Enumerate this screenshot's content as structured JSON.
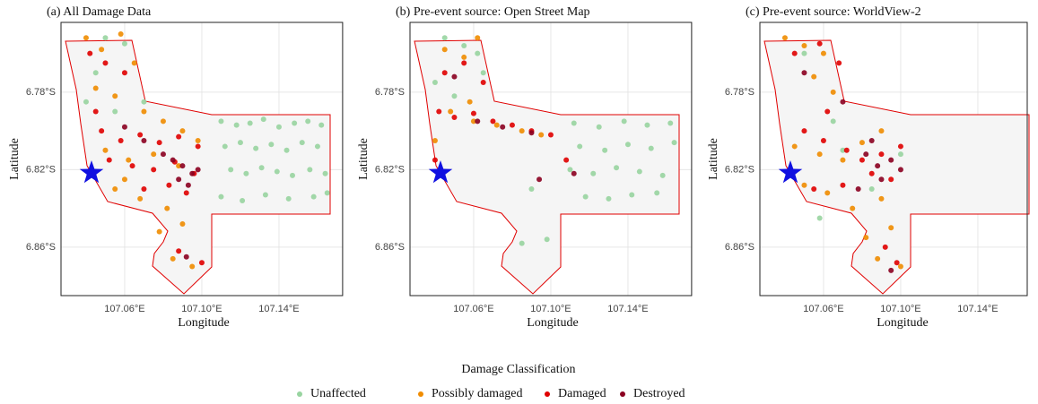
{
  "chart_data": [
    {
      "type": "scatter",
      "title": "(a) All Damage Data",
      "xlabel": "Longitude",
      "ylabel": "Latitude",
      "xlim": [
        107.027,
        107.173
      ],
      "ylim": [
        -6.885,
        -6.744
      ],
      "xticks": [
        {
          "value": 107.06,
          "label": "107.06°E"
        },
        {
          "value": 107.1,
          "label": "107.10°E"
        },
        {
          "value": 107.14,
          "label": "107.14°E"
        }
      ],
      "yticks": [
        {
          "value": -6.78,
          "label": "6.78°S"
        },
        {
          "value": -6.82,
          "label": "6.82°S"
        },
        {
          "value": -6.86,
          "label": "6.86°S"
        }
      ],
      "grid": true,
      "series": [
        {
          "name": "Unaffected",
          "color": "#98d4a0",
          "x": [
            107.11,
            107.118,
            107.125,
            107.132,
            107.14,
            107.148,
            107.155,
            107.162,
            107.112,
            107.12,
            107.128,
            107.136,
            107.144,
            107.152,
            107.16,
            107.115,
            107.123,
            107.131,
            107.139,
            107.147,
            107.156,
            107.164,
            107.11,
            107.121,
            107.133,
            107.145,
            107.158,
            107.165,
            107.05,
            107.06,
            107.045,
            107.07,
            107.04,
            107.055
          ],
          "y": [
            -6.795,
            -6.797,
            -6.796,
            -6.794,
            -6.798,
            -6.796,
            -6.795,
            -6.797,
            -6.808,
            -6.806,
            -6.809,
            -6.807,
            -6.81,
            -6.806,
            -6.808,
            -6.82,
            -6.822,
            -6.819,
            -6.821,
            -6.823,
            -6.82,
            -6.822,
            -6.834,
            -6.836,
            -6.833,
            -6.835,
            -6.834,
            -6.832,
            -6.752,
            -6.755,
            -6.77,
            -6.785,
            -6.785,
            -6.79
          ]
        },
        {
          "name": "Possibly damaged",
          "color": "#f08c00",
          "x": [
            107.04,
            107.048,
            107.058,
            107.065,
            107.045,
            107.055,
            107.07,
            107.08,
            107.09,
            107.05,
            107.062,
            107.075,
            107.088,
            107.098,
            107.055,
            107.068,
            107.082,
            107.078,
            107.09,
            107.085,
            107.095,
            107.06
          ],
          "y": [
            -6.752,
            -6.758,
            -6.75,
            -6.765,
            -6.778,
            -6.782,
            -6.79,
            -6.795,
            -6.8,
            -6.81,
            -6.815,
            -6.812,
            -6.818,
            -6.805,
            -6.83,
            -6.835,
            -6.84,
            -6.852,
            -6.848,
            -6.866,
            -6.87,
            -6.825
          ]
        },
        {
          "name": "Damaged",
          "color": "#e00000",
          "x": [
            107.042,
            107.05,
            107.06,
            107.048,
            107.058,
            107.068,
            107.078,
            107.088,
            107.098,
            107.052,
            107.064,
            107.075,
            107.086,
            107.096,
            107.07,
            107.083,
            107.092,
            107.088,
            107.1,
            107.045
          ],
          "y": [
            -6.76,
            -6.765,
            -6.77,
            -6.8,
            -6.805,
            -6.802,
            -6.806,
            -6.803,
            -6.808,
            -6.815,
            -6.818,
            -6.82,
            -6.816,
            -6.822,
            -6.83,
            -6.828,
            -6.832,
            -6.862,
            -6.868,
            -6.79
          ]
        },
        {
          "name": "Destroyed",
          "color": "#8b0020",
          "x": [
            107.085,
            107.09,
            107.095,
            107.088,
            107.098,
            107.08,
            107.093,
            107.07,
            107.06,
            107.092
          ],
          "y": [
            -6.815,
            -6.818,
            -6.822,
            -6.825,
            -6.82,
            -6.812,
            -6.828,
            -6.805,
            -6.798,
            -6.865
          ]
        }
      ]
    },
    {
      "type": "scatter",
      "title": "(b) Pre-event source: Open Street Map",
      "xlabel": "Longitude",
      "ylabel": "Latitude",
      "xlim": [
        107.027,
        107.173
      ],
      "ylim": [
        -6.885,
        -6.744
      ],
      "xticks": [
        {
          "value": 107.06,
          "label": "107.06°E"
        },
        {
          "value": 107.1,
          "label": "107.10°E"
        },
        {
          "value": 107.14,
          "label": "107.14°E"
        }
      ],
      "yticks": [
        {
          "value": -6.78,
          "label": "6.78°S"
        },
        {
          "value": -6.82,
          "label": "6.82°S"
        },
        {
          "value": -6.86,
          "label": "6.86°S"
        }
      ],
      "grid": true,
      "series": [
        {
          "name": "Unaffected",
          "color": "#98d4a0",
          "x": [
            107.112,
            107.125,
            107.138,
            107.15,
            107.162,
            107.115,
            107.128,
            107.14,
            107.152,
            107.164,
            107.11,
            107.122,
            107.134,
            107.146,
            107.158,
            107.118,
            107.13,
            107.142,
            107.155,
            107.045,
            107.055,
            107.062,
            107.04,
            107.05,
            107.065,
            107.085,
            107.098,
            107.09
          ],
          "y": [
            -6.796,
            -6.798,
            -6.795,
            -6.797,
            -6.796,
            -6.808,
            -6.81,
            -6.807,
            -6.809,
            -6.806,
            -6.82,
            -6.822,
            -6.819,
            -6.821,
            -6.823,
            -6.834,
            -6.835,
            -6.833,
            -6.832,
            -6.752,
            -6.756,
            -6.76,
            -6.775,
            -6.782,
            -6.77,
            -6.858,
            -6.856,
            -6.83
          ]
        },
        {
          "name": "Possibly damaged",
          "color": "#f08c00",
          "x": [
            107.045,
            107.055,
            107.062,
            107.048,
            107.06,
            107.072,
            107.085,
            107.095,
            107.04,
            107.058
          ],
          "y": [
            -6.758,
            -6.762,
            -6.752,
            -6.79,
            -6.795,
            -6.797,
            -6.8,
            -6.802,
            -6.805,
            -6.785
          ]
        },
        {
          "name": "Damaged",
          "color": "#e00000",
          "x": [
            107.042,
            107.05,
            107.06,
            107.07,
            107.08,
            107.09,
            107.1,
            107.045,
            107.055,
            107.065,
            107.108,
            107.04
          ],
          "y": [
            -6.79,
            -6.793,
            -6.791,
            -6.795,
            -6.797,
            -6.8,
            -6.802,
            -6.77,
            -6.765,
            -6.775,
            -6.815,
            -6.815
          ]
        },
        {
          "name": "Destroyed",
          "color": "#8b0020",
          "x": [
            107.062,
            107.075,
            107.09,
            107.094,
            107.112,
            107.05
          ],
          "y": [
            -6.795,
            -6.798,
            -6.801,
            -6.825,
            -6.822,
            -6.772
          ]
        }
      ]
    },
    {
      "type": "scatter",
      "title": "(c) Pre-event source: WorldView-2",
      "xlabel": "Longitude",
      "ylabel": "Latitude",
      "xlim": [
        107.027,
        107.1656
      ],
      "ylim": [
        -6.885,
        -6.744
      ],
      "xticks": [
        {
          "value": 107.06,
          "label": "107.06°E"
        },
        {
          "value": 107.1,
          "label": "107.10°E"
        },
        {
          "value": 107.14,
          "label": "107.14°E"
        }
      ],
      "yticks": [
        {
          "value": -6.78,
          "label": "6.78°S"
        },
        {
          "value": -6.82,
          "label": "6.82°S"
        },
        {
          "value": -6.86,
          "label": "6.86°S"
        }
      ],
      "grid": true,
      "series": [
        {
          "name": "Unaffected",
          "color": "#98d4a0",
          "x": [
            107.05,
            107.065,
            107.07,
            107.085,
            107.1,
            107.058
          ],
          "y": [
            -6.76,
            -6.795,
            -6.81,
            -6.83,
            -6.812,
            -6.845
          ]
        },
        {
          "name": "Possibly damaged",
          "color": "#f08c00",
          "x": [
            107.04,
            107.05,
            107.06,
            107.055,
            107.065,
            107.045,
            107.058,
            107.07,
            107.08,
            107.09,
            107.05,
            107.062,
            107.075,
            107.09,
            107.082,
            107.095,
            107.088,
            107.1
          ],
          "y": [
            -6.752,
            -6.756,
            -6.76,
            -6.772,
            -6.78,
            -6.808,
            -6.812,
            -6.815,
            -6.806,
            -6.8,
            -6.828,
            -6.832,
            -6.84,
            -6.835,
            -6.855,
            -6.85,
            -6.866,
            -6.87
          ]
        },
        {
          "name": "Damaged",
          "color": "#e00000",
          "x": [
            107.045,
            107.058,
            107.068,
            107.05,
            107.06,
            107.072,
            107.08,
            107.09,
            107.1,
            107.085,
            107.095,
            107.055,
            107.07,
            107.092,
            107.098,
            107.062
          ],
          "y": [
            -6.76,
            -6.755,
            -6.765,
            -6.8,
            -6.805,
            -6.81,
            -6.815,
            -6.812,
            -6.808,
            -6.822,
            -6.825,
            -6.83,
            -6.828,
            -6.86,
            -6.868,
            -6.79
          ]
        },
        {
          "name": "Destroyed",
          "color": "#8b0020",
          "x": [
            107.082,
            107.088,
            107.095,
            107.09,
            107.1,
            107.078,
            107.085,
            107.07,
            107.05,
            107.095
          ],
          "y": [
            -6.812,
            -6.818,
            -6.815,
            -6.825,
            -6.82,
            -6.83,
            -6.805,
            -6.785,
            -6.77,
            -6.872
          ]
        }
      ]
    }
  ],
  "legend_title": "Damage Classification"
}
